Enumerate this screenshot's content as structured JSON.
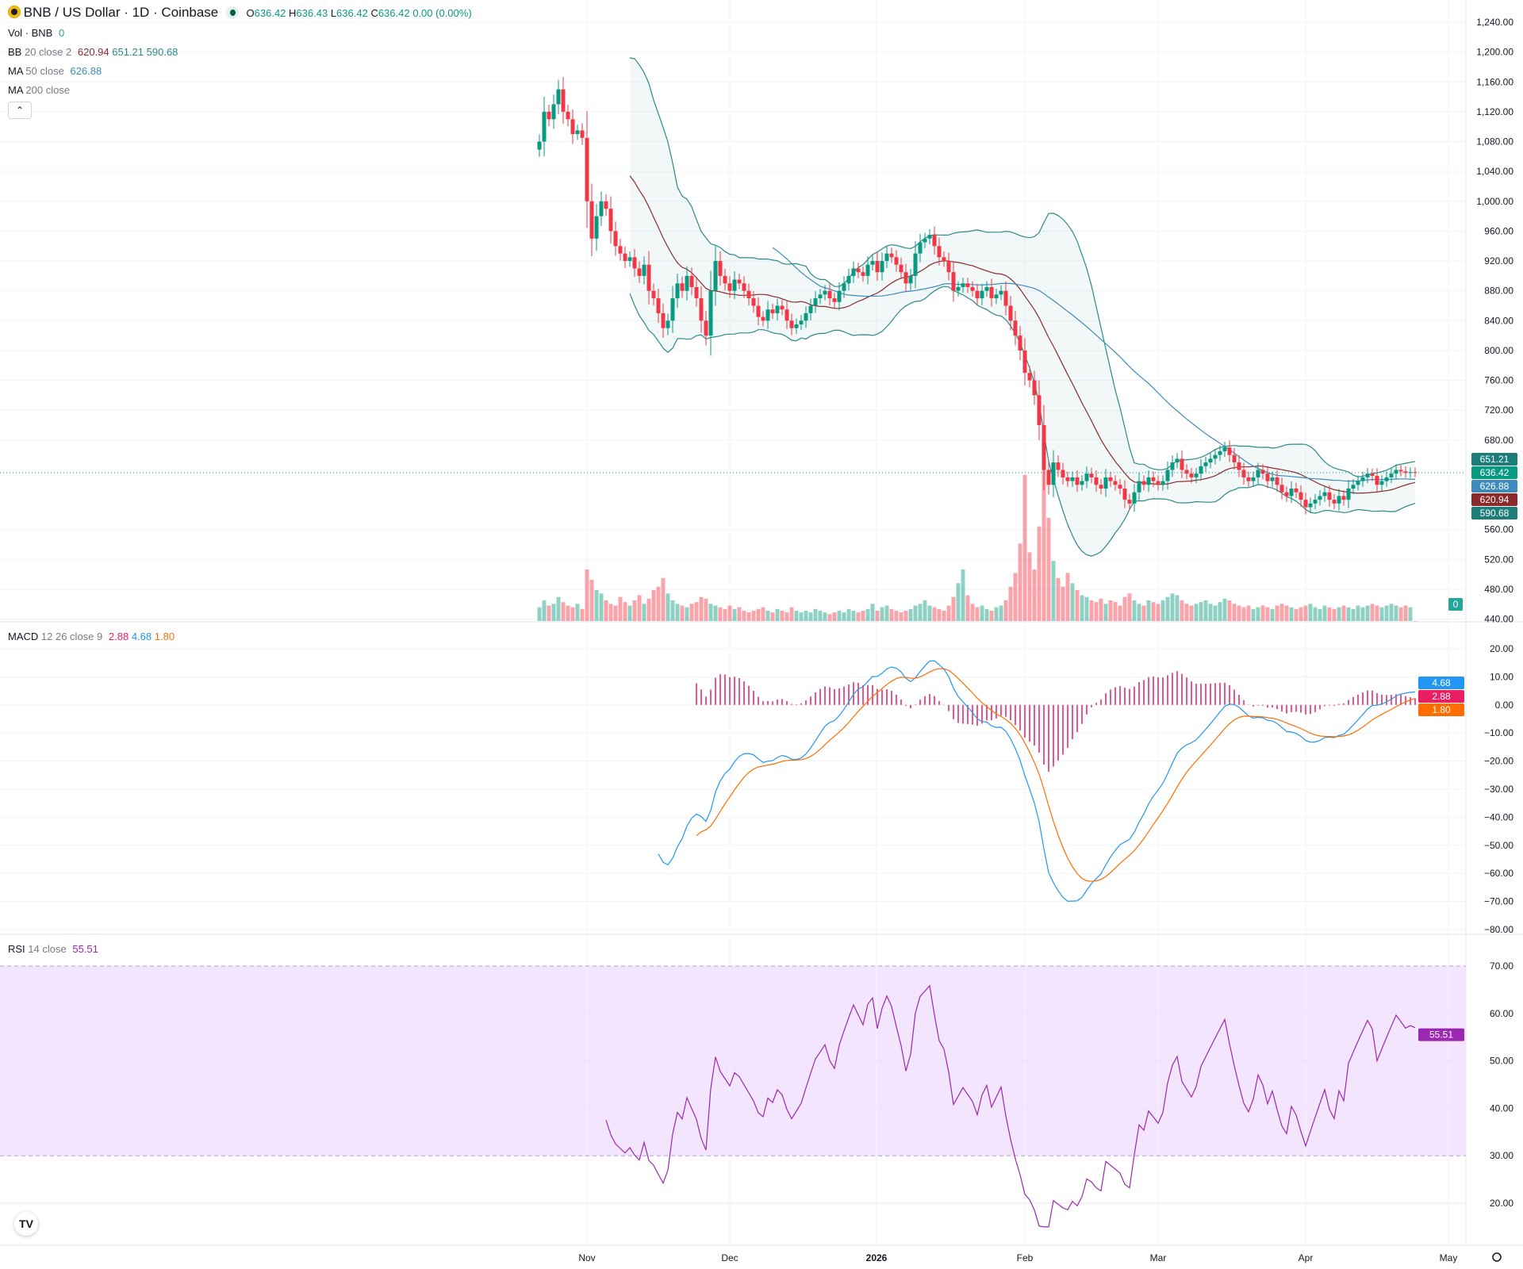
{
  "header": {
    "symbol": "BNB / US Dollar · 1D · Coinbase",
    "o_label": "O",
    "o": "636.42",
    "h_label": "H",
    "h": "636.43",
    "l_label": "L",
    "l": "636.42",
    "c_label": "C",
    "c": "636.42",
    "change": "0.00 (0.00%)"
  },
  "legends": {
    "vol": {
      "name": "Vol · BNB",
      "value": "0"
    },
    "bb": {
      "name": "BB",
      "params": "20 close 2",
      "basis": "620.94",
      "upper": "651.21",
      "lower": "590.68"
    },
    "ma50": {
      "name": "MA",
      "params": "50 close",
      "value": "626.88"
    },
    "ma200": {
      "name": "MA",
      "params": "200 close"
    },
    "macd": {
      "name": "MACD",
      "params": "12 26 close 9",
      "hist": "2.88",
      "macd": "4.68",
      "signal": "1.80"
    },
    "rsi": {
      "name": "RSI",
      "params": "14 close",
      "value": "55.51"
    }
  },
  "collapse_icon": "chevron-up-icon",
  "colors": {
    "up": "#089981",
    "down": "#f23645",
    "bb_basis": "#8b2a2a",
    "bb_band": "#2a8a88",
    "ma50": "#3d8bbd",
    "macd": "#2196f3",
    "signal": "#ff6d00",
    "hist": "#e91e63",
    "rsi": "#9c27b0",
    "rsi_band": "#f3e5fd"
  },
  "chart_data": [
    {
      "type": "candlestick",
      "title": "BNB / US Dollar · 1D · Coinbase",
      "start_date": "2025-10-22",
      "closes": [
        1080,
        1120,
        1110,
        1130,
        1150,
        1120,
        1110,
        1090,
        1095,
        1085,
        1000,
        950,
        980,
        1000,
        990,
        960,
        940,
        930,
        920,
        925,
        910,
        900,
        915,
        880,
        870,
        850,
        830,
        840,
        870,
        890,
        880,
        900,
        885,
        870,
        840,
        820,
        880,
        920,
        900,
        890,
        880,
        895,
        890,
        880,
        870,
        860,
        845,
        840,
        855,
        850,
        860,
        855,
        840,
        830,
        835,
        840,
        850,
        860,
        870,
        875,
        880,
        870,
        865,
        880,
        890,
        900,
        910,
        905,
        900,
        915,
        920,
        905,
        920,
        930,
        925,
        915,
        905,
        890,
        900,
        930,
        945,
        950,
        955,
        940,
        925,
        920,
        905,
        880,
        885,
        890,
        885,
        880,
        870,
        880,
        885,
        870,
        875,
        880,
        860,
        840,
        820,
        800,
        770,
        760,
        740,
        700,
        640,
        620,
        650,
        640,
        630,
        625,
        630,
        620,
        625,
        635,
        630,
        620,
        615,
        630,
        625,
        620,
        615,
        600,
        595,
        610,
        625,
        620,
        630,
        625,
        620,
        625,
        640,
        650,
        655,
        640,
        635,
        630,
        635,
        645,
        650,
        655,
        660,
        665,
        670,
        660,
        650,
        640,
        630,
        625,
        630,
        640,
        635,
        625,
        630,
        620,
        610,
        605,
        615,
        610,
        600,
        590,
        595,
        600,
        605,
        610,
        600,
        595,
        605,
        600,
        615,
        620,
        625,
        630,
        635,
        632,
        620,
        625,
        630,
        635,
        640,
        638,
        636,
        637,
        636.42
      ],
      "volume": [
        8,
        12,
        9,
        10,
        14,
        11,
        9,
        8,
        10,
        7,
        30,
        24,
        18,
        16,
        12,
        10,
        9,
        14,
        11,
        9,
        12,
        15,
        10,
        13,
        18,
        20,
        25,
        16,
        12,
        10,
        9,
        8,
        10,
        11,
        14,
        13,
        10,
        9,
        8,
        7,
        9,
        7,
        8,
        6,
        5,
        6,
        7,
        8,
        6,
        5,
        7,
        6,
        5,
        8,
        6,
        5,
        6,
        5,
        7,
        6,
        5,
        4,
        5,
        6,
        5,
        7,
        6,
        5,
        6,
        7,
        10,
        6,
        8,
        9,
        7,
        6,
        5,
        6,
        7,
        9,
        10,
        12,
        9,
        8,
        7,
        6,
        9,
        14,
        22,
        30,
        15,
        10,
        8,
        9,
        7,
        6,
        8,
        9,
        12,
        20,
        28,
        45,
        85,
        40,
        30,
        55,
        90,
        60,
        35,
        25,
        20,
        28,
        22,
        18,
        15,
        14,
        12,
        11,
        13,
        10,
        12,
        11,
        9,
        14,
        16,
        12,
        10,
        9,
        12,
        11,
        10,
        12,
        14,
        16,
        15,
        12,
        10,
        9,
        10,
        11,
        12,
        10,
        9,
        11,
        13,
        12,
        10,
        9,
        8,
        9,
        7,
        8,
        9,
        8,
        7,
        9,
        10,
        9,
        8,
        7,
        8,
        9,
        10,
        8,
        7,
        9,
        8,
        7,
        8,
        9,
        8,
        7,
        9,
        8,
        9,
        10,
        9,
        8,
        9,
        10,
        9,
        8,
        9,
        8,
        0
      ],
      "price_axis": {
        "min": 460,
        "max": 1240,
        "ticks": [
          "1,240.00",
          "1,200.00",
          "1,160.00",
          "1,120.00",
          "1,080.00",
          "1,040.00",
          "1,000.00",
          "960.00",
          "920.00",
          "880.00",
          "840.00",
          "800.00",
          "760.00",
          "720.00",
          "680.00",
          "560.00",
          "520.00",
          "480.00",
          "440.00"
        ]
      },
      "macd_axis": {
        "ticks": [
          "20.00",
          "10.00",
          "0.00",
          "−10.00",
          "−20.00",
          "−30.00",
          "−40.00",
          "−50.00",
          "−60.00",
          "−70.00",
          "−80.00"
        ]
      },
      "rsi_axis": {
        "ticks": [
          "70.00",
          "60.00",
          "50.00",
          "40.00",
          "30.00",
          "20.00"
        ],
        "upper_band": 70,
        "lower_band": 30
      },
      "x_ticks": [
        "Nov",
        "Dec",
        "2026",
        "Feb",
        "Mar",
        "Apr",
        "May"
      ],
      "last_labels": {
        "upper": "651.21",
        "price": "636.42",
        "ma50": "626.88",
        "basis": "620.94",
        "lower": "590.68",
        "vol": "0",
        "macd": "4.68",
        "hist": "2.88",
        "signal": "1.80",
        "rsi": "55.51"
      }
    }
  ]
}
